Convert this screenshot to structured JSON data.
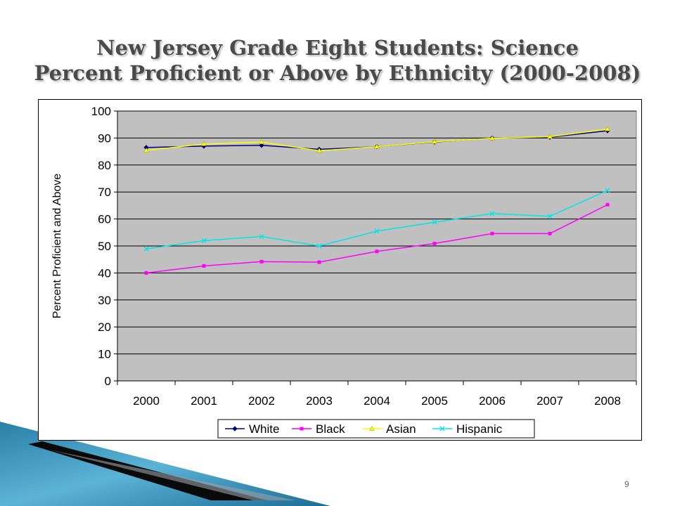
{
  "slide": {
    "title_line1": "New Jersey Grade Eight Students: Science",
    "title_line2": "Percent Proficient or Above by Ethnicity (2000-2008)",
    "page_number": "9"
  },
  "chart_data": {
    "type": "line",
    "title": "",
    "xlabel": "",
    "ylabel": "Percent Proficient and Above",
    "ylim": [
      0,
      100
    ],
    "ytick_step": 10,
    "grid": true,
    "legend_position": "bottom",
    "categories": [
      "2000",
      "2001",
      "2002",
      "2003",
      "2004",
      "2005",
      "2006",
      "2007",
      "2008"
    ],
    "series": [
      {
        "name": "White",
        "color": "#000080",
        "marker": "diamond",
        "values": [
          86.5,
          87.0,
          87.3,
          85.8,
          86.8,
          88.5,
          90.0,
          90.3,
          92.7
        ]
      },
      {
        "name": "Black",
        "color": "#ff00ff",
        "marker": "square",
        "values": [
          40.0,
          42.6,
          44.2,
          44.0,
          48.0,
          50.9,
          54.6,
          54.6,
          65.3
        ]
      },
      {
        "name": "Asian",
        "color": "#ffff00",
        "marker": "triangle",
        "values": [
          85.4,
          87.8,
          88.5,
          85.3,
          86.8,
          88.6,
          89.9,
          90.5,
          93.3
        ]
      },
      {
        "name": "Hispanic",
        "color": "#00e5e5",
        "marker": "x",
        "values": [
          48.9,
          52.0,
          53.5,
          50.0,
          55.5,
          58.8,
          62.0,
          61.0,
          70.6
        ]
      }
    ]
  }
}
